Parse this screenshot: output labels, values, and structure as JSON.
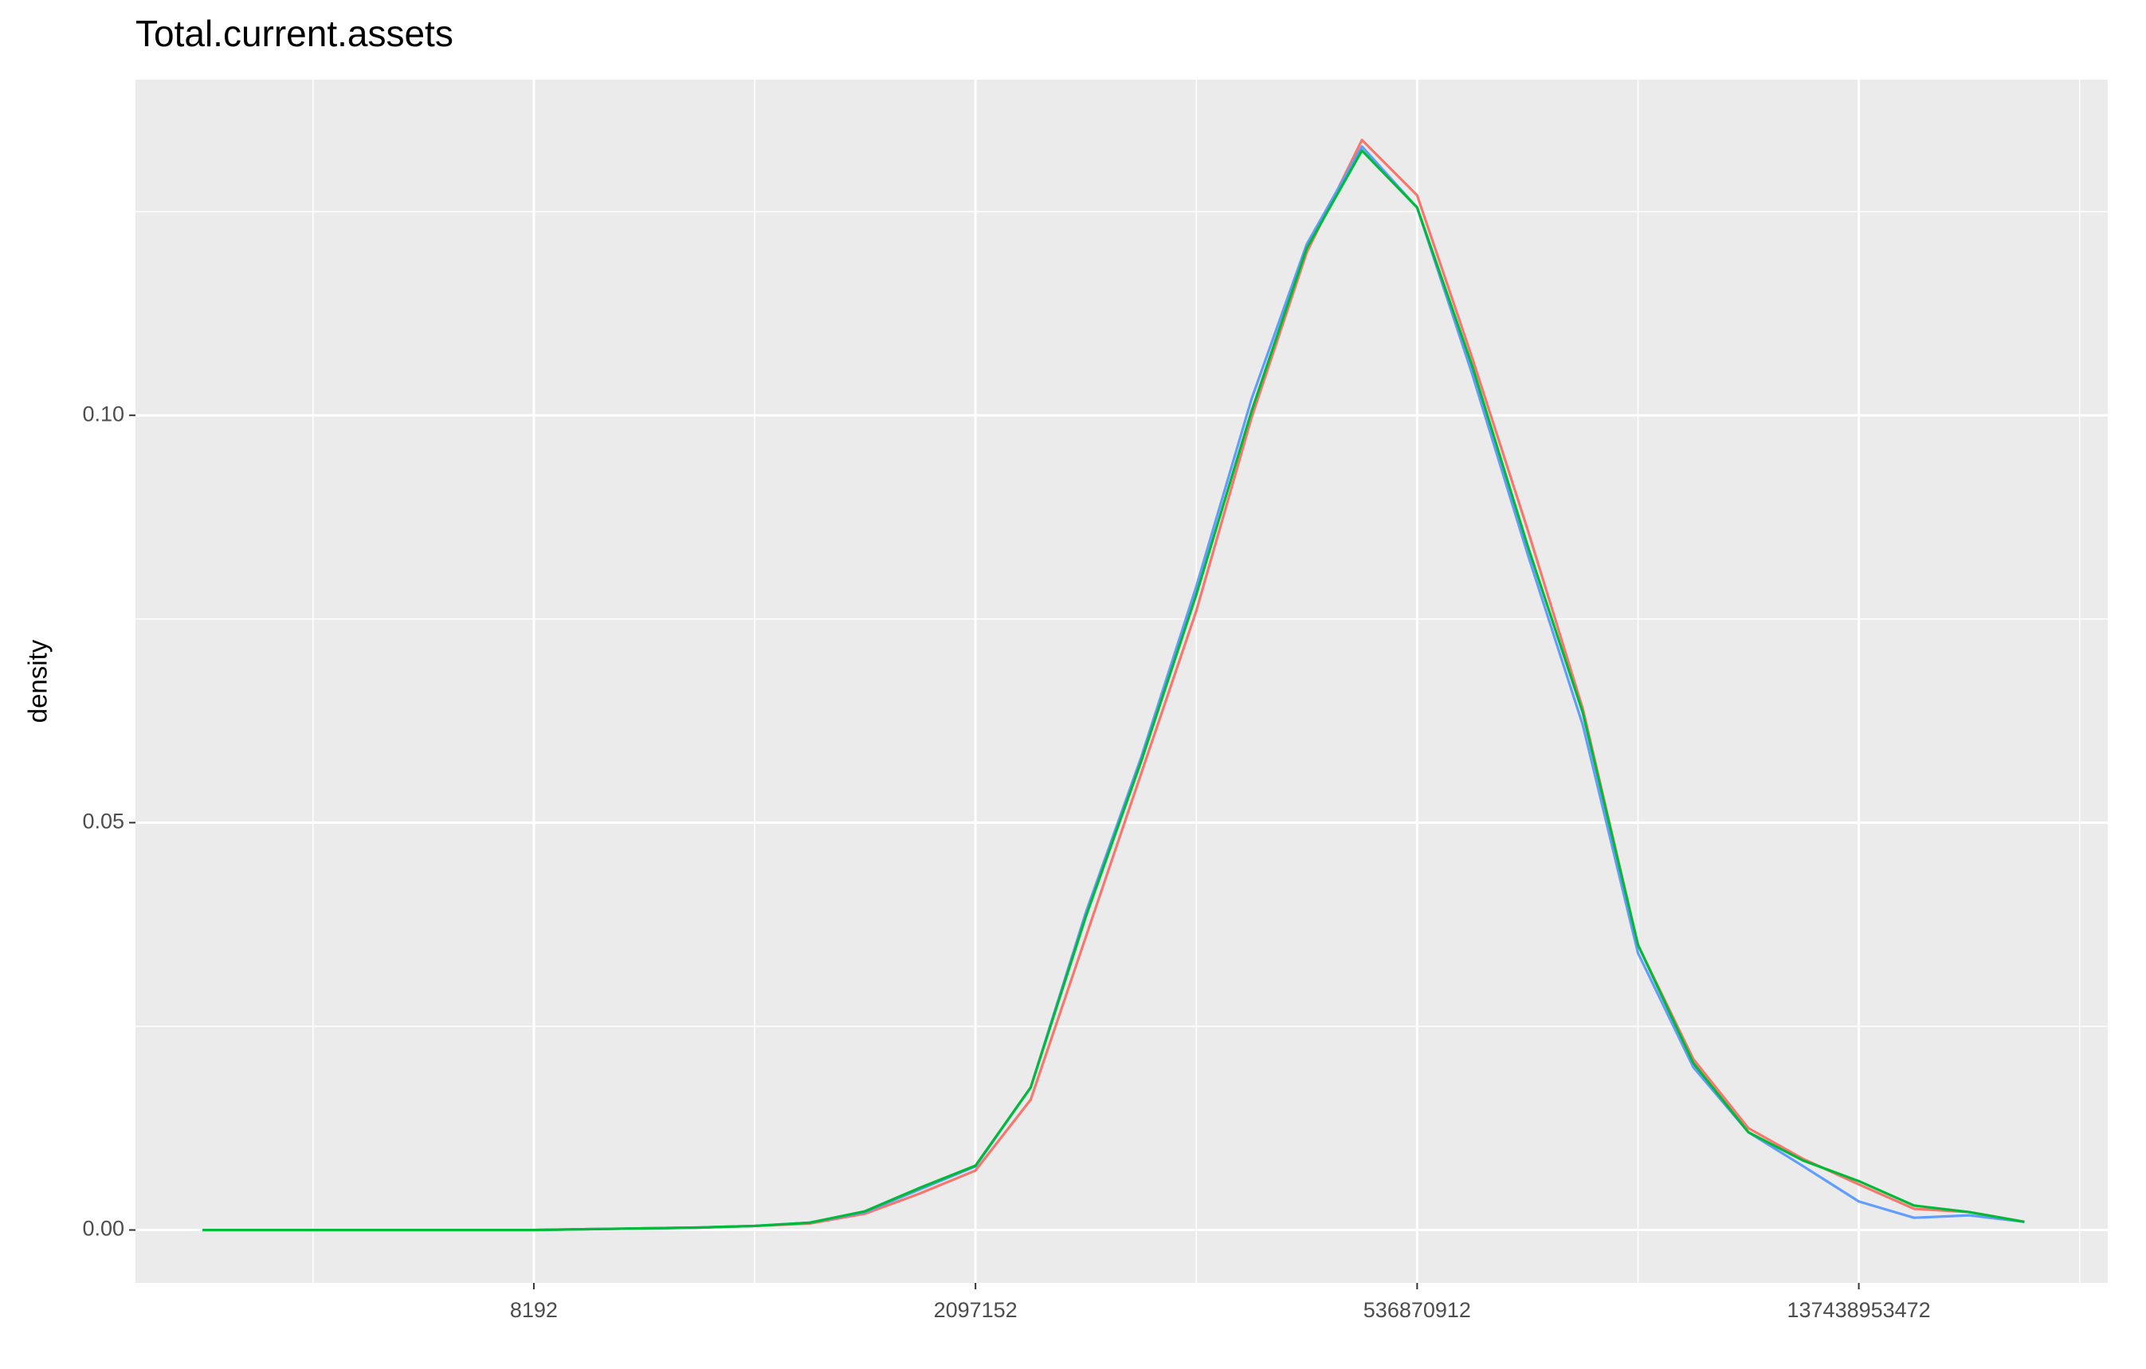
{
  "chart_data": {
    "type": "density",
    "title": "Total.current.assets",
    "y_label": "density",
    "x_log_base": 2,
    "grid": true,
    "xlim": [
      55.1,
      3130000000000
    ],
    "ylim": [
      -0.0065,
      0.1412
    ],
    "xticks": [
      8192,
      2097152,
      536870912,
      137438953472
    ],
    "yticks": [
      {
        "value": 0,
        "label": "0.00"
      },
      {
        "value": 0.05,
        "label": "0.05"
      },
      {
        "value": 0.1,
        "label": "0.10"
      }
    ],
    "x": [
      128,
      256,
      512,
      1024,
      2048,
      4096,
      8192,
      16384,
      32768,
      65536,
      131072,
      262144,
      524288,
      1048576,
      2097152,
      4194304,
      8388608,
      16777216,
      33554432,
      67108864,
      134217728,
      268435456,
      536870912,
      1073741824,
      2147483648,
      4294967296,
      8589934592,
      17179869184,
      34359738368,
      68719476736,
      137438953472,
      274877906944,
      549755813888,
      1099511627776
    ],
    "series": [
      {
        "color": "#F8766D",
        "values": [
          0,
          0,
          0,
          0,
          0,
          0,
          0,
          0.0001,
          0.0002,
          0.0003,
          0.0005,
          0.0008,
          0.002,
          0.0045,
          0.0073,
          0.016,
          0.036,
          0.056,
          0.076,
          0.0997,
          0.12,
          0.1338,
          0.127,
          0.107,
          0.086,
          0.064,
          0.035,
          0.021,
          0.0125,
          0.0087,
          0.0056,
          0.0026,
          0.0022,
          0.001
        ]
      },
      {
        "color": "#619CFF",
        "values": [
          0,
          0,
          0,
          0,
          0,
          0,
          0,
          0.0001,
          0.0002,
          0.0003,
          0.0005,
          0.0009,
          0.0022,
          0.005,
          0.0078,
          0.0175,
          0.039,
          0.058,
          0.079,
          0.102,
          0.121,
          0.133,
          0.1255,
          0.105,
          0.083,
          0.062,
          0.034,
          0.02,
          0.012,
          0.0078,
          0.0035,
          0.0015,
          0.0018,
          0.001
        ]
      },
      {
        "color": "#00BA38",
        "values": [
          0,
          0,
          0,
          0,
          0,
          0,
          0,
          0.0001,
          0.0002,
          0.0003,
          0.0005,
          0.0009,
          0.0023,
          0.0052,
          0.0079,
          0.0175,
          0.0385,
          0.0575,
          0.078,
          0.1005,
          0.1205,
          0.1325,
          0.1255,
          0.106,
          0.084,
          0.0635,
          0.035,
          0.0205,
          0.012,
          0.0085,
          0.006,
          0.003,
          0.0022,
          0.001
        ]
      }
    ]
  }
}
